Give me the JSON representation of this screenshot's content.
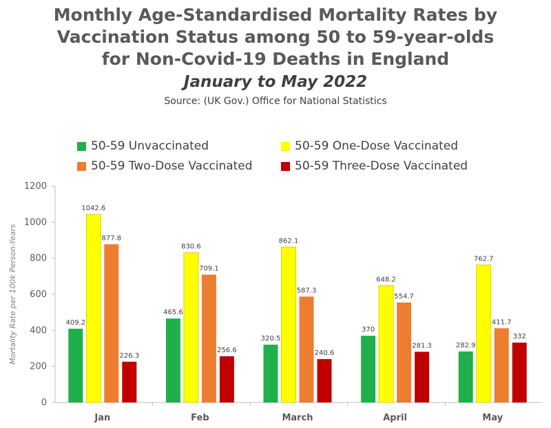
{
  "header": {
    "title_lines": [
      "Monthly Age-Standardised Mortality Rates by",
      "Vaccination Status among 50 to 59-year-olds",
      "for Non-Covid-19 Deaths in England"
    ],
    "subtitle": "January to May 2022",
    "source": "Source: (UK Gov.) Office for National Statistics"
  },
  "chart_data": {
    "type": "bar",
    "title": "Monthly Age-Standardised Mortality Rates by Vaccination Status among 50 to 59-year-olds for Non-Covid-19 Deaths in England",
    "subtitle": "January to May 2022",
    "xlabel": "",
    "ylabel": "Mortality Rate per 100k Person-Years",
    "ylim": [
      0,
      1200
    ],
    "yticks": [
      0,
      200,
      400,
      600,
      800,
      1000,
      1200
    ],
    "categories": [
      "Jan",
      "Feb",
      "March",
      "April",
      "May"
    ],
    "series": [
      {
        "name": "50-59 Unvaccinated",
        "color": "#1fb04b",
        "values": [
          409.2,
          465.6,
          320.5,
          370,
          282.9
        ]
      },
      {
        "name": "50-59 One-Dose Vaccinated",
        "color": "#ffff00",
        "values": [
          1042.6,
          830.6,
          862.1,
          648.2,
          762.7
        ]
      },
      {
        "name": "50-59 Two-Dose Vaccinated",
        "color": "#ed7d31",
        "values": [
          877.8,
          709.1,
          587.3,
          554.7,
          411.7
        ]
      },
      {
        "name": "50-59 Three-Dose Vaccinated",
        "color": "#c00000",
        "values": [
          226.3,
          256.6,
          240.6,
          281.3,
          332
        ]
      }
    ],
    "legend_position": "top",
    "grid": false
  }
}
